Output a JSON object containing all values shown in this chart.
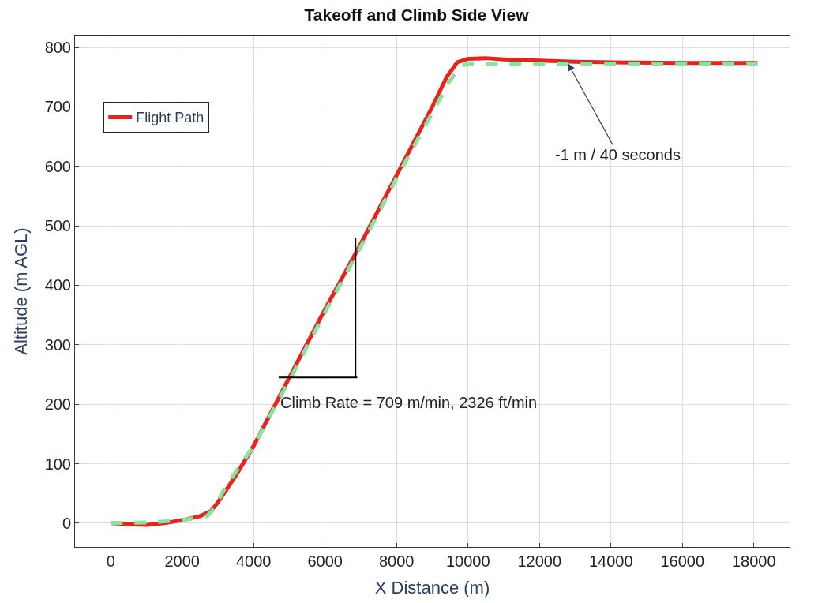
{
  "chart_data": {
    "type": "line",
    "title": "Takeoff and Climb Side View",
    "xlabel": "X Distance (m)",
    "ylabel": "Altitude (m AGL)",
    "xlim": [
      -1000,
      19000
    ],
    "ylim": [
      -40,
      820
    ],
    "xticks": [
      0,
      2000,
      4000,
      6000,
      8000,
      10000,
      12000,
      14000,
      16000,
      18000
    ],
    "yticks": [
      0,
      100,
      200,
      300,
      400,
      500,
      600,
      700,
      800
    ],
    "grid": true,
    "legend": "top left",
    "marker": "none",
    "series": [
      {
        "name": "Flight Path",
        "color": "#e8231c",
        "line_style": "solid",
        "x": [
          0,
          500,
          1000,
          1500,
          2000,
          2500,
          2800,
          3000,
          3500,
          4000,
          5000,
          6000,
          7000,
          8000,
          9000,
          9400,
          9700,
          10000,
          10500,
          11000,
          12000,
          13000,
          14000,
          16000,
          18100
        ],
        "values": [
          0,
          -2,
          -3,
          0,
          5,
          12,
          20,
          35,
          80,
          130,
          245,
          360,
          470,
          585,
          700,
          750,
          775,
          781,
          782,
          780,
          778,
          776,
          775,
          774,
          774
        ]
      },
      {
        "color": "#86e3a0",
        "line_style": "dashed",
        "x": [
          0,
          1000,
          2000,
          2700,
          2900,
          3200,
          4000,
          5000,
          6000,
          7000,
          8000,
          9000,
          9500,
          9800,
          10000,
          12000,
          14000,
          16000,
          18100
        ],
        "values": [
          0,
          1,
          5,
          12,
          25,
          60,
          130,
          240,
          355,
          465,
          580,
          690,
          745,
          768,
          773,
          773,
          773,
          773,
          773
        ]
      },
      {
        "color": "#000000",
        "line_style": "solid",
        "x": [
          4700,
          6850,
          6900,
          6850,
          6850
        ],
        "values": [
          245,
          245,
          245,
          245,
          480
        ]
      }
    ],
    "annotations": [
      {
        "text": "-1 m / 40 seconds",
        "x": 12800,
        "y": 773
      },
      "Climb Rate = 709 m/min, 2326 ft/min"
    ]
  }
}
